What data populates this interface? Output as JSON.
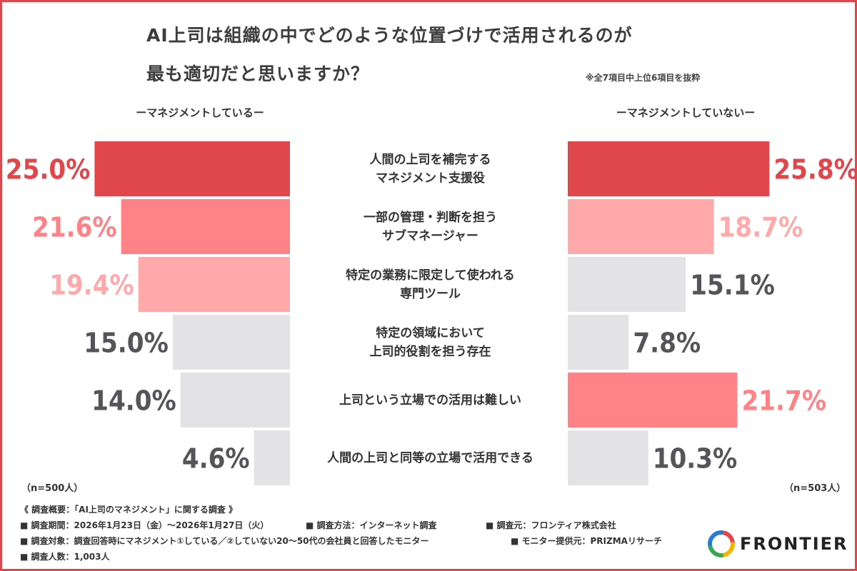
{
  "title": {
    "line1": "AI上司は組織の中でどのような位置づけで活用されるのが",
    "line2": "最も適切だと思いますか？"
  },
  "note": "※全7項目中上位6項目を抜粋",
  "groups": {
    "left": "ーマネジメントしているー",
    "right": "ーマネジメントしていないー"
  },
  "chart_data": {
    "type": "bar",
    "categories": [
      [
        "人間の上司を補完する",
        "マネジメント支援役"
      ],
      [
        "一部の管理・判断を担う",
        "サブマネージャー"
      ],
      [
        "特定の業務に限定して使われる",
        "専門ツール"
      ],
      [
        "特定の領域において",
        "上司的役割を担う存在"
      ],
      [
        "上司という立場での活用は難しい"
      ],
      [
        "人間の上司と同等の立場で活用できる"
      ]
    ],
    "series": [
      {
        "name": "ーマネジメントしているー",
        "values": [
          25.0,
          21.6,
          19.4,
          15.0,
          14.0,
          4.6
        ],
        "labels": [
          "25.0%",
          "21.6%",
          "19.4%",
          "15.0%",
          "14.0%",
          "4.6%"
        ],
        "colors": [
          "#e0474c",
          "#ff8286",
          "#ffa9ab",
          "#e3e3e6",
          "#e3e3e6",
          "#e3e3e6"
        ],
        "label_colors": [
          "#e0474c",
          "#ff8286",
          "#ffa9ab",
          "#555559",
          "#555559",
          "#555559"
        ]
      },
      {
        "name": "ーマネジメントしていないー",
        "values": [
          25.8,
          18.7,
          15.1,
          7.8,
          21.7,
          10.3
        ],
        "labels": [
          "25.8%",
          "18.7%",
          "15.1%",
          "7.8%",
          "21.7%",
          "10.3%"
        ],
        "colors": [
          "#e0474c",
          "#ffa9ab",
          "#e3e3e6",
          "#e3e3e6",
          "#ff8286",
          "#e3e3e6"
        ],
        "label_colors": [
          "#e0474c",
          "#ffa9ab",
          "#555559",
          "#555559",
          "#ff8286",
          "#555559"
        ]
      }
    ],
    "xlim": [
      0,
      26.5
    ]
  },
  "n": {
    "left": "（n=500人）",
    "right": "（n=503人）"
  },
  "footer": {
    "overview": "《 調査概要：「AI上司のマネジメント」に関する調査 》",
    "period": "■ 調査期間：2026年1月23日（金）〜2026年1月27日（火）",
    "method": "■ 調査方法：インターネット調査",
    "source": "■ 調査元：フロンティア株式会社",
    "target": "■ 調査対象：調査回答時にマネジメント①している／②していない20〜50代の会社員と回答したモニター",
    "provider": "■ モニター提供元：PRIZMAリサーチ",
    "count": "■ 調査人数：1,003人"
  },
  "logo": {
    "text": "FRONTIER"
  }
}
